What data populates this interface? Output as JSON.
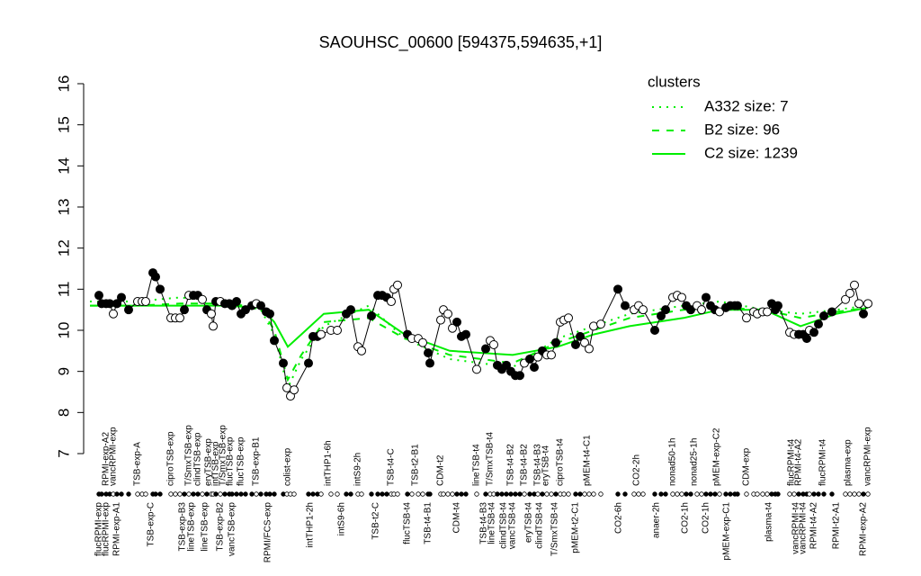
{
  "chart_data": {
    "type": "line",
    "title": "SAOUHSC_00600 [594375,594635,+1]",
    "xlim": [
      100,
      975
    ],
    "ylim": [
      7,
      16
    ],
    "yticks": [
      7,
      8,
      9,
      10,
      11,
      12,
      13,
      14,
      15,
      16
    ],
    "legend_title": "clusters",
    "legend_color": "#00ee00",
    "points": {
      "x": [
        110,
        113,
        118,
        122,
        126,
        130,
        135,
        143,
        153,
        158,
        162,
        170,
        173,
        178,
        190,
        195,
        200,
        205,
        210,
        215,
        220,
        225,
        230,
        235,
        237,
        240,
        245,
        250,
        255,
        258,
        263,
        268,
        273,
        280,
        285,
        290,
        296,
        300,
        305,
        315,
        319,
        323,
        327,
        343,
        348,
        353,
        357,
        368,
        375,
        385,
        390,
        398,
        402,
        413,
        420,
        425,
        430,
        435,
        438,
        442,
        453,
        458,
        465,
        470,
        476,
        478,
        490,
        493,
        498,
        503,
        508,
        513,
        518,
        530,
        540,
        545,
        549,
        553,
        558,
        563,
        568,
        573,
        578,
        583,
        589,
        594,
        598,
        603,
        608,
        613,
        618,
        623,
        627,
        632,
        640,
        645,
        650,
        655,
        660,
        668,
        687,
        695,
        705,
        710,
        715,
        728,
        735,
        740,
        748,
        753,
        758,
        763,
        768,
        775,
        780,
        785,
        790,
        795,
        800,
        807,
        812,
        817,
        820,
        830,
        838,
        842,
        848,
        853,
        858,
        862,
        865,
        878,
        883,
        888,
        893,
        897,
        900,
        905,
        910,
        916,
        925,
        940,
        945,
        950,
        955,
        960,
        965
      ],
      "values": [
        10.85,
        10.65,
        10.65,
        10.65,
        10.4,
        10.65,
        10.8,
        10.5,
        10.7,
        10.7,
        10.7,
        11.4,
        11.3,
        11.0,
        10.3,
        10.3,
        10.3,
        10.5,
        10.85,
        10.85,
        10.85,
        10.75,
        10.5,
        10.4,
        10.1,
        10.7,
        10.7,
        10.65,
        10.65,
        10.6,
        10.7,
        10.4,
        10.5,
        10.6,
        10.65,
        10.6,
        10.45,
        10.4,
        9.75,
        9.2,
        8.6,
        8.4,
        8.55,
        9.2,
        9.85,
        9.85,
        9.9,
        10.0,
        10.0,
        10.4,
        10.5,
        9.6,
        9.5,
        10.35,
        10.85,
        10.85,
        10.8,
        10.7,
        11.0,
        11.1,
        9.9,
        9.8,
        9.8,
        9.7,
        9.45,
        9.2,
        10.25,
        10.5,
        10.4,
        10.05,
        10.2,
        9.85,
        9.9,
        9.05,
        9.55,
        9.75,
        9.65,
        9.15,
        9.05,
        9.15,
        9.0,
        8.9,
        8.9,
        9.2,
        9.3,
        9.1,
        9.35,
        9.5,
        9.4,
        9.4,
        9.7,
        10.2,
        10.25,
        10.3,
        9.65,
        9.85,
        9.7,
        9.55,
        10.1,
        10.15,
        11.0,
        10.6,
        10.5,
        10.6,
        10.5,
        10.0,
        10.35,
        10.5,
        10.8,
        10.85,
        10.8,
        10.6,
        10.5,
        10.6,
        10.5,
        10.8,
        10.6,
        10.5,
        10.45,
        10.55,
        10.6,
        10.6,
        10.6,
        10.3,
        10.45,
        10.4,
        10.45,
        10.45,
        10.65,
        10.5,
        10.6,
        9.95,
        9.9,
        9.9,
        9.9,
        9.8,
        10.0,
        9.95,
        10.15,
        10.35,
        10.45,
        10.75,
        10.9,
        11.1,
        10.65,
        10.4,
        10.65
      ],
      "fills": [
        "#000",
        "#000",
        "#000",
        "#000",
        "#fff",
        "#000",
        "#000",
        "#000",
        "#fff",
        "#fff",
        "#fff",
        "#000",
        "#000",
        "#000",
        "#fff",
        "#fff",
        "#fff",
        "#000",
        "#fff",
        "#000",
        "#000",
        "#fff",
        "#000",
        "#fff",
        "#fff",
        "#000",
        "#fff",
        "#000",
        "#000",
        "#000",
        "#000",
        "#000",
        "#000",
        "#000",
        "#fff",
        "#000",
        "#000",
        "#000",
        "#000",
        "#000",
        "#fff",
        "#fff",
        "#fff",
        "#000",
        "#000",
        "#000",
        "#fff",
        "#fff",
        "#fff",
        "#000",
        "#000",
        "#fff",
        "#fff",
        "#000",
        "#000",
        "#000",
        "#000",
        "#fff",
        "#fff",
        "#fff",
        "#000",
        "#fff",
        "#fff",
        "#fff",
        "#000",
        "#000",
        "#fff",
        "#fff",
        "#fff",
        "#fff",
        "#000",
        "#000",
        "#000",
        "#fff",
        "#000",
        "#fff",
        "#fff",
        "#000",
        "#000",
        "#000",
        "#000",
        "#000",
        "#000",
        "#fff",
        "#000",
        "#000",
        "#fff",
        "#000",
        "#fff",
        "#fff",
        "#000",
        "#fff",
        "#fff",
        "#fff",
        "#000",
        "#000",
        "#fff",
        "#fff",
        "#fff",
        "#fff",
        "#000",
        "#000",
        "#fff",
        "#fff",
        "#fff",
        "#000",
        "#000",
        "#000",
        "#fff",
        "#fff",
        "#fff",
        "#000",
        "#000",
        "#fff",
        "#fff",
        "#000",
        "#000",
        "#000",
        "#fff",
        "#000",
        "#000",
        "#000",
        "#000",
        "#fff",
        "#fff",
        "#fff",
        "#fff",
        "#fff",
        "#000",
        "#000",
        "#000",
        "#fff",
        "#fff",
        "#000",
        "#000",
        "#000",
        "#fff",
        "#000",
        "#000",
        "#000",
        "#000",
        "#fff",
        "#fff",
        "#fff",
        "#fff",
        "#000",
        "#fff"
      ]
    },
    "series": [
      {
        "name": "A332 size: 7",
        "dash": "2,6",
        "color": "#00ee00",
        "x": [
          100,
          150,
          200,
          250,
          290,
          305,
          320,
          335,
          360,
          410,
          450,
          500,
          570,
          620,
          660,
          700,
          760,
          800,
          850,
          890,
          930,
          965
        ],
        "values": [
          10.7,
          10.7,
          10.8,
          10.7,
          10.5,
          9.9,
          8.6,
          9.3,
          10.1,
          10.6,
          9.8,
          9.3,
          9.1,
          9.8,
          10.1,
          10.4,
          10.6,
          10.7,
          10.5,
          10.4,
          10.5,
          10.6
        ]
      },
      {
        "name": "B2 size: 96",
        "dash": "8,8",
        "color": "#00ee00",
        "x": [
          100,
          150,
          200,
          250,
          290,
          305,
          320,
          335,
          360,
          410,
          450,
          500,
          570,
          620,
          660,
          700,
          760,
          800,
          850,
          890,
          930,
          965
        ],
        "values": [
          10.6,
          10.6,
          10.65,
          10.65,
          10.55,
          10.0,
          8.8,
          9.4,
          10.2,
          10.3,
          9.8,
          9.4,
          9.2,
          9.7,
          10.0,
          10.3,
          10.5,
          10.55,
          10.5,
          10.3,
          10.45,
          10.55
        ]
      },
      {
        "name": "C2 size: 1239",
        "dash": "none",
        "color": "#00ee00",
        "x": [
          100,
          150,
          200,
          250,
          290,
          305,
          320,
          335,
          360,
          410,
          450,
          500,
          570,
          620,
          660,
          700,
          760,
          800,
          850,
          890,
          930,
          965
        ],
        "values": [
          10.6,
          10.6,
          10.6,
          10.6,
          10.55,
          10.2,
          9.6,
          9.9,
          10.4,
          10.5,
          9.9,
          9.5,
          9.4,
          9.6,
          9.9,
          10.1,
          10.3,
          10.5,
          10.5,
          10.1,
          10.4,
          10.55
        ]
      }
    ],
    "top_labels": {
      "x": [
        118,
        126,
        153,
        190,
        210,
        220,
        232,
        240,
        248,
        256,
        268,
        285,
        320,
        365,
        398,
        435,
        462,
        490,
        530,
        545,
        568,
        583,
        598,
        607,
        623,
        653,
        708,
        748,
        772,
        797,
        830,
        880,
        888,
        915,
        943,
        965
      ],
      "labels": [
        "RPMI-exp-A2",
        "vancRPMI-exp",
        "TSB-exp-A",
        "ciproTSB-exp",
        "T/SmxTSB-exp",
        "clindTSB-exp",
        "eryTSB-exp",
        "intTSB-exp",
        "T/SmxTSB-exp",
        "flucTSB-exp",
        "flucTSB-exp",
        "TSB-exp-B1",
        "colist-exp",
        "intTHP1-6h",
        "intS9-2h",
        "TSB-t4-C",
        "TSB-t2-B1",
        "CDM-t2",
        "lineTSB-t4",
        "T/SmxTSB-t4",
        "TSB-t4-B2",
        "TSB-t4-B2",
        "TSB-t4-B3",
        "eryTSB-t4",
        "ciproTSB-t4",
        "pMEM-t4-C1",
        "CO2-2h",
        "nonad50-1h",
        "nonad25-1h",
        "pMEM-exp-C2",
        "CDM-exp",
        "flucRPMI-t4",
        "RPMI-t4-A2",
        "flucRPMI-t4",
        "plasma-exp",
        "vancRPMI-exp"
      ]
    },
    "bottom_labels": {
      "x": [
        110,
        118,
        130,
        168,
        203,
        213,
        228,
        245,
        258,
        298,
        345,
        380,
        418,
        453,
        476,
        508,
        538,
        547,
        560,
        570,
        588,
        600,
        617,
        640,
        688,
        730,
        762,
        785,
        808,
        855,
        885,
        893,
        905,
        930,
        960
      ],
      "labels": [
        "flucRPMI-exp",
        "flucRPMI-exp",
        "RPMI-exp-A1",
        "TSB-exp-C",
        "TSB-exp-B3",
        "lineTSB-exp",
        "lineTSB-exp",
        "TSB-exp-B2",
        "vancTSB-exp",
        "RPMI/FCS-exp",
        "intTHP1-2h",
        "intS9-6h",
        "TSB-t2-C",
        "flucTSB-t4",
        "TSB-t4-B1",
        "CDM-t4",
        "TSB-t4-B3",
        "lineTSB-t4",
        "clindTSB-t4",
        "vancTSB-t4",
        "eryTSB-t4",
        "clindTSB-t4",
        "T/SmxTSB-t4",
        "pMEM-t2-C1",
        "CO2-6h",
        "anaer-2h",
        "CO2-1h",
        "CO2-1h",
        "pMEM-exp-C1",
        "plasma-t4",
        "vancRPMI-t4",
        "vancRPMI-t4",
        "RPMI-t4-A2",
        "RPMI-t2-A1",
        "RPMI-exp-A2"
      ]
    }
  }
}
